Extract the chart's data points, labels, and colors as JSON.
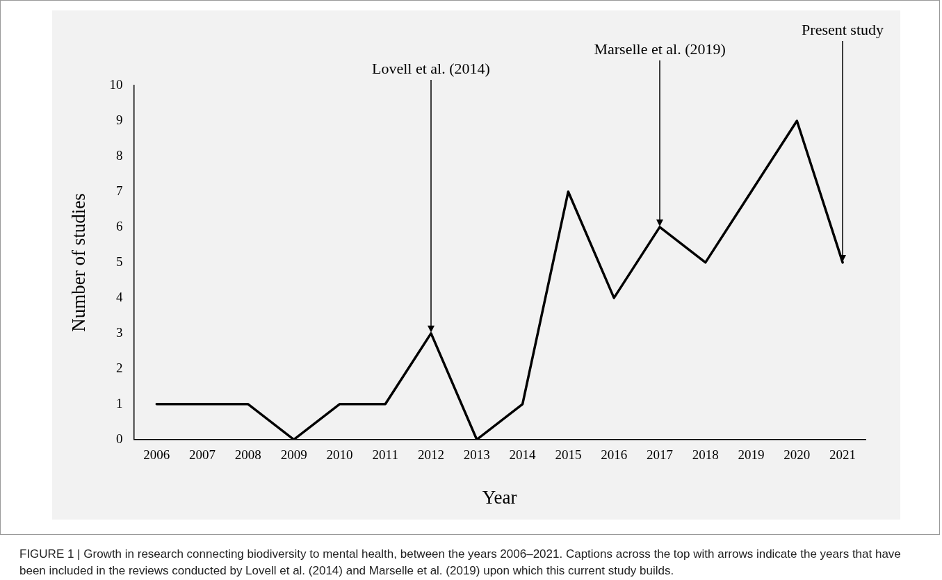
{
  "chart_data": {
    "type": "line",
    "xlabel": "Year",
    "ylabel": "Number of studies",
    "categories": [
      "2006",
      "2007",
      "2008",
      "2009",
      "2010",
      "2011",
      "2012",
      "2013",
      "2014",
      "2015",
      "2016",
      "2017",
      "2018",
      "2019",
      "2020",
      "2021"
    ],
    "series": [
      {
        "color": "#000000",
        "values": [
          1,
          1,
          1,
          0,
          1,
          1,
          3,
          0,
          1,
          7,
          4,
          6,
          5,
          7,
          9,
          5
        ]
      }
    ],
    "ylim": [
      0,
      10
    ],
    "yticks": [
      0,
      1,
      2,
      3,
      4,
      5,
      6,
      7,
      8,
      9,
      10
    ],
    "grid": false,
    "legend": false,
    "marker": "none",
    "line_style": "solid",
    "annotations": [
      {
        "text": "Lovell et al. (2014)",
        "x": "2012",
        "y": 3
      },
      {
        "text": "Marselle et al. (2019)",
        "x": "2017",
        "y": 6
      },
      {
        "text": "Present study",
        "x": "2021",
        "y": 5
      },
      "FIGURE 1 | Growth in research connecting biodiversity to mental health, between the years 2006–2021. Captions across the top with arrows indicate the years that have been included in the reviews conducted by Lovell et al. (2014) and Marselle et al. (2019) upon which this current study builds."
    ]
  }
}
